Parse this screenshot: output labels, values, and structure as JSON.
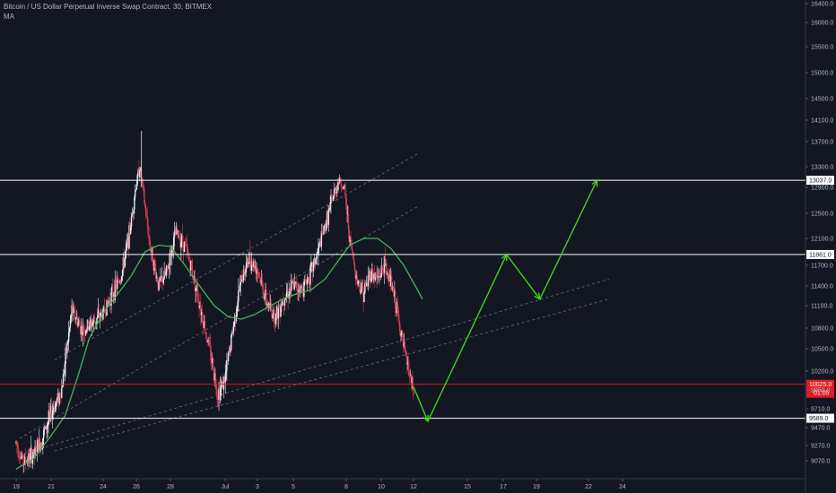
{
  "header": {
    "title": "Bitcoin / US Dollar Perpetual Inverse Swap Contract, 30, BITMEX",
    "indicator": "MA"
  },
  "colors": {
    "background": "#131722",
    "candle_up": "#e7e9ee",
    "candle_down": "#d13a4f",
    "ma": "#46b25a",
    "arrow": "#3fd41a",
    "level_line": "#ffffff",
    "price_line": "#e01b24",
    "channel": "#6b6f7c"
  },
  "chart_data": {
    "type": "candlestick",
    "symbol": "XBTUSD",
    "interval": "30",
    "exchange": "BITMEX",
    "y_axis": {
      "ticks": [
        9070.0,
        9270.0,
        9470.0,
        9710.0,
        9950.0,
        10200.0,
        10500.0,
        10800.0,
        11100.0,
        11400.0,
        11700.0,
        12100.0,
        12500.0,
        12900.0,
        13300.0,
        13700.0,
        14100.0,
        14500.0,
        15000.0,
        15500.0,
        16000.0,
        16400.0
      ],
      "tick_labels": [
        "9070.0",
        "9270.0",
        "9470.0",
        "9710.0",
        "9950.0",
        "10200.0",
        "10500.0",
        "10800.0",
        "11100.0",
        "11400.0",
        "11700.0",
        "12100.0",
        "12500.0",
        "12900.0",
        "13300.0",
        "13700.0",
        "14100.0",
        "14500.0",
        "15000.0",
        "15500.0",
        "16000.0",
        "16400.0"
      ],
      "range": [
        8950,
        16450
      ]
    },
    "x_axis": {
      "ticks": [
        19,
        21,
        24,
        26,
        28,
        "Jul",
        3,
        5,
        8,
        10,
        12,
        15,
        17,
        19,
        22,
        24
      ],
      "tick_labels": [
        "19",
        "21",
        "24",
        "26",
        "28",
        "Jul",
        "3",
        "5",
        "8",
        "10",
        "12",
        "15",
        "17",
        "19",
        "22",
        "24"
      ],
      "range_days": [
        18.2,
        25.5
      ]
    },
    "horizontal_levels": [
      {
        "value": 13037.0,
        "label": "13037.0"
      },
      {
        "value": 11861.0,
        "label": "11861.0"
      },
      {
        "value": 9589.0,
        "label": "9589.0"
      }
    ],
    "current_price": {
      "value": 10025.0,
      "label": "10025.0",
      "countdown": "01:05"
    },
    "price_path": [
      {
        "x": 19.0,
        "y": 9300
      },
      {
        "x": 19.4,
        "y": 9050
      },
      {
        "x": 20.0,
        "y": 9150
      },
      {
        "x": 20.5,
        "y": 9350
      },
      {
        "x": 21.0,
        "y": 9650
      },
      {
        "x": 21.6,
        "y": 9950
      },
      {
        "x": 21.9,
        "y": 10500
      },
      {
        "x": 22.2,
        "y": 11050
      },
      {
        "x": 22.8,
        "y": 10750
      },
      {
        "x": 23.5,
        "y": 10900
      },
      {
        "x": 24.0,
        "y": 11000
      },
      {
        "x": 24.6,
        "y": 11300
      },
      {
        "x": 25.1,
        "y": 11550
      },
      {
        "x": 25.6,
        "y": 12200
      },
      {
        "x": 25.9,
        "y": 12800
      },
      {
        "x": 26.2,
        "y": 13300
      },
      {
        "x": 26.5,
        "y": 12600
      },
      {
        "x": 26.8,
        "y": 12000
      },
      {
        "x": 27.3,
        "y": 11400
      },
      {
        "x": 27.8,
        "y": 11600
      },
      {
        "x": 28.3,
        "y": 12200
      },
      {
        "x": 28.8,
        "y": 12000
      },
      {
        "x": 29.3,
        "y": 11500
      },
      {
        "x": 29.8,
        "y": 10900
      },
      {
        "x": 30.3,
        "y": 10300
      },
      {
        "x": 30.6,
        "y": 9900
      },
      {
        "x": 31.0,
        "y": 10100
      },
      {
        "x": 31.5,
        "y": 10800
      },
      {
        "x": 32.0,
        "y": 11500
      },
      {
        "x": 32.5,
        "y": 11800
      },
      {
        "x": 33.0,
        "y": 11650
      },
      {
        "x": 33.5,
        "y": 11150
      },
      {
        "x": 34.0,
        "y": 10950
      },
      {
        "x": 34.5,
        "y": 11250
      },
      {
        "x": 35.0,
        "y": 11400
      },
      {
        "x": 35.5,
        "y": 11350
      },
      {
        "x": 36.0,
        "y": 11600
      },
      {
        "x": 36.4,
        "y": 11900
      },
      {
        "x": 36.9,
        "y": 12400
      },
      {
        "x": 37.3,
        "y": 12800
      },
      {
        "x": 37.6,
        "y": 13050
      },
      {
        "x": 37.9,
        "y": 12850
      },
      {
        "x": 38.2,
        "y": 12100
      },
      {
        "x": 38.6,
        "y": 11500
      },
      {
        "x": 39.0,
        "y": 11300
      },
      {
        "x": 39.4,
        "y": 11600
      },
      {
        "x": 39.8,
        "y": 11500
      },
      {
        "x": 40.2,
        "y": 11700
      },
      {
        "x": 40.6,
        "y": 11450
      },
      {
        "x": 41.0,
        "y": 11000
      },
      {
        "x": 41.4,
        "y": 10500
      },
      {
        "x": 41.8,
        "y": 10100
      },
      {
        "x": 42.0,
        "y": 9900
      }
    ],
    "moving_average": [
      {
        "x": 19.0,
        "y": 8960
      },
      {
        "x": 20.0,
        "y": 9100
      },
      {
        "x": 21.0,
        "y": 9380
      },
      {
        "x": 21.8,
        "y": 9620
      },
      {
        "x": 22.5,
        "y": 10100
      },
      {
        "x": 23.2,
        "y": 10650
      },
      {
        "x": 24.0,
        "y": 11000
      },
      {
        "x": 24.8,
        "y": 11250
      },
      {
        "x": 25.7,
        "y": 11550
      },
      {
        "x": 26.5,
        "y": 11900
      },
      {
        "x": 27.3,
        "y": 12000
      },
      {
        "x": 28.0,
        "y": 11980
      },
      {
        "x": 28.8,
        "y": 11700
      },
      {
        "x": 29.6,
        "y": 11400
      },
      {
        "x": 30.4,
        "y": 11100
      },
      {
        "x": 31.2,
        "y": 10950
      },
      {
        "x": 32.0,
        "y": 10920
      },
      {
        "x": 32.8,
        "y": 10980
      },
      {
        "x": 33.6,
        "y": 11080
      },
      {
        "x": 34.4,
        "y": 11200
      },
      {
        "x": 35.2,
        "y": 11280
      },
      {
        "x": 36.0,
        "y": 11340
      },
      {
        "x": 36.8,
        "y": 11500
      },
      {
        "x": 37.5,
        "y": 11750
      },
      {
        "x": 38.2,
        "y": 12000
      },
      {
        "x": 39.0,
        "y": 12100
      },
      {
        "x": 39.8,
        "y": 12100
      },
      {
        "x": 40.6,
        "y": 11950
      },
      {
        "x": 41.4,
        "y": 11700
      },
      {
        "x": 42.1,
        "y": 11400
      },
      {
        "x": 42.5,
        "y": 11200
      }
    ],
    "channels": [
      {
        "from": {
          "x": 21.2,
          "y": 10350
        },
        "to": {
          "x": 42.2,
          "y": 13500
        }
      },
      {
        "from": {
          "x": 19.2,
          "y": 9350
        },
        "to": {
          "x": 42.2,
          "y": 12600
        }
      },
      {
        "from": {
          "x": 19.2,
          "y": 9150
        },
        "to": {
          "x": 53.2,
          "y": 11500
        }
      },
      {
        "from": {
          "x": 21.2,
          "y": 9200
        },
        "to": {
          "x": 53.2,
          "y": 11200
        }
      }
    ],
    "projection_arrow": [
      {
        "x": 42.0,
        "y": 9990
      },
      {
        "x": 42.8,
        "y": 9550
      },
      {
        "x": 47.2,
        "y": 11861
      },
      {
        "x": 49.2,
        "y": 11200
      },
      {
        "x": 52.5,
        "y": 13037
      }
    ]
  }
}
